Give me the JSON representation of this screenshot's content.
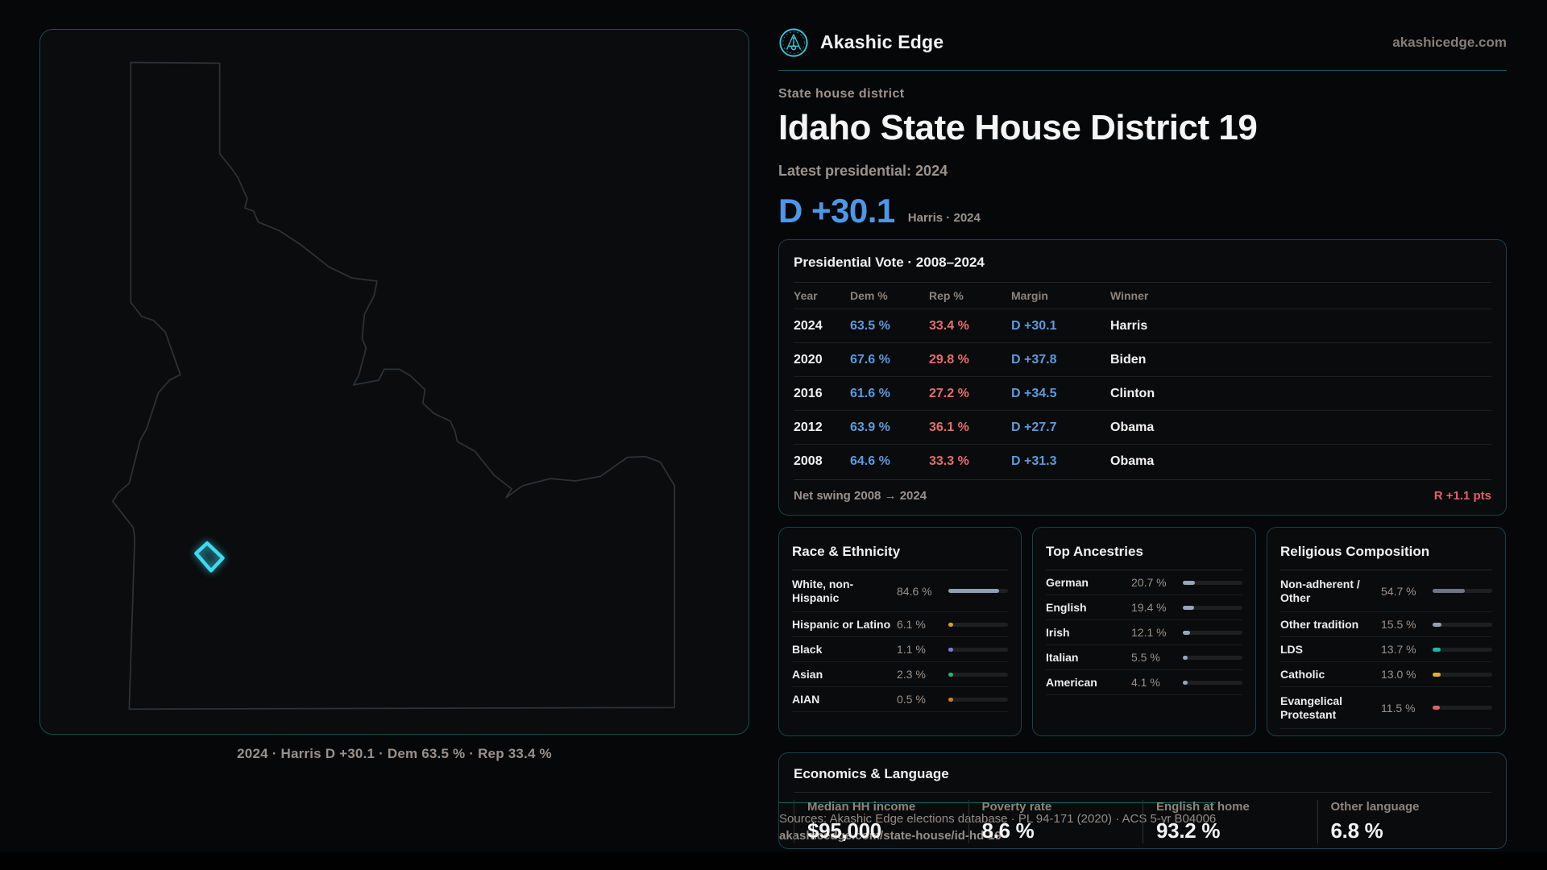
{
  "brand": {
    "name": "Akashic Edge",
    "domain": "akashicedge.com"
  },
  "hero": {
    "eyebrow": "State house district",
    "title": "Idaho State House District 19",
    "latest_label": "Latest presidential: 2024",
    "margin_value": "D +30.1",
    "margin_context": "Harris · 2024",
    "margin_color": "#4d97e8"
  },
  "map": {
    "caption": "2024 · Harris D +30.1 · Dem 63.5 % · Rep 33.4 %",
    "district_color": "#3fd9f2"
  },
  "vote_table": {
    "title": "Presidential Vote · 2008–2024",
    "columns": [
      "Year",
      "Dem %",
      "Rep %",
      "Margin",
      "Winner"
    ],
    "rows": [
      {
        "year": "2024",
        "dem": "63.5 %",
        "rep": "33.4 %",
        "margin": "D +30.1",
        "winner": "Harris"
      },
      {
        "year": "2020",
        "dem": "67.6 %",
        "rep": "29.8 %",
        "margin": "D +37.8",
        "winner": "Biden"
      },
      {
        "year": "2016",
        "dem": "61.6 %",
        "rep": "27.2 %",
        "margin": "D +34.5",
        "winner": "Clinton"
      },
      {
        "year": "2012",
        "dem": "63.9 %",
        "rep": "36.1 %",
        "margin": "D +27.7",
        "winner": "Obama"
      },
      {
        "year": "2008",
        "dem": "64.6 %",
        "rep": "33.3 %",
        "margin": "D +31.3",
        "winner": "Obama"
      }
    ],
    "net_swing_label": "Net swing 2008 → 2024",
    "net_swing_value": "R +1.1 pts"
  },
  "race": {
    "title": "Race & Ethnicity",
    "rows": [
      {
        "label": "White, non-Hispanic",
        "value": "84.6 %",
        "pct": 84.6,
        "color": "#8fa0b5"
      },
      {
        "label": "Hispanic or Latino",
        "value": "6.1 %",
        "pct": 6.1,
        "color": "#e09a31"
      },
      {
        "label": "Black",
        "value": "1.1 %",
        "pct": 1.1,
        "color": "#7d7ad6"
      },
      {
        "label": "Asian",
        "value": "2.3 %",
        "pct": 2.3,
        "color": "#2fae74"
      },
      {
        "label": "AIAN",
        "value": "0.5 %",
        "pct": 0.5,
        "color": "#c5802e"
      }
    ]
  },
  "ancestries": {
    "title": "Top Ancestries",
    "rows": [
      {
        "label": "German",
        "value": "20.7 %",
        "pct": 20.7,
        "color": "#93a7be"
      },
      {
        "label": "English",
        "value": "19.4 %",
        "pct": 19.4,
        "color": "#93a7be"
      },
      {
        "label": "Irish",
        "value": "12.1 %",
        "pct": 12.1,
        "color": "#93a7be"
      },
      {
        "label": "Italian",
        "value": "5.5 %",
        "pct": 5.5,
        "color": "#93a7be"
      },
      {
        "label": "American",
        "value": "4.1 %",
        "pct": 4.1,
        "color": "#93a7be"
      }
    ]
  },
  "religion": {
    "title": "Religious Composition",
    "rows": [
      {
        "label": "Non-adherent / Other",
        "value": "54.7 %",
        "pct": 54.7,
        "color": "#6e7685"
      },
      {
        "label": "Other tradition",
        "value": "15.5 %",
        "pct": 15.5,
        "color": "#98a1ae"
      },
      {
        "label": "LDS",
        "value": "13.7 %",
        "pct": 13.7,
        "color": "#1cb9a6"
      },
      {
        "label": "Catholic",
        "value": "13.0 %",
        "pct": 13.0,
        "color": "#e0b12f"
      },
      {
        "label": "Evangelical Protestant",
        "value": "11.5 %",
        "pct": 11.5,
        "color": "#e26262"
      }
    ]
  },
  "economics": {
    "title": "Economics & Language",
    "stats": [
      {
        "label": "Median HH income",
        "value": "$95,000"
      },
      {
        "label": "Poverty rate",
        "value": "8.6 %"
      },
      {
        "label": "English at home",
        "value": "93.2 %"
      },
      {
        "label": "Other language",
        "value": "6.8 %"
      }
    ]
  },
  "footer": {
    "line1": "Sources: Akashic Edge elections database · PL 94-171 (2020) · ACS 5-yr B04006",
    "line2": "akashicedge.com/state-house/id-hd-19"
  }
}
